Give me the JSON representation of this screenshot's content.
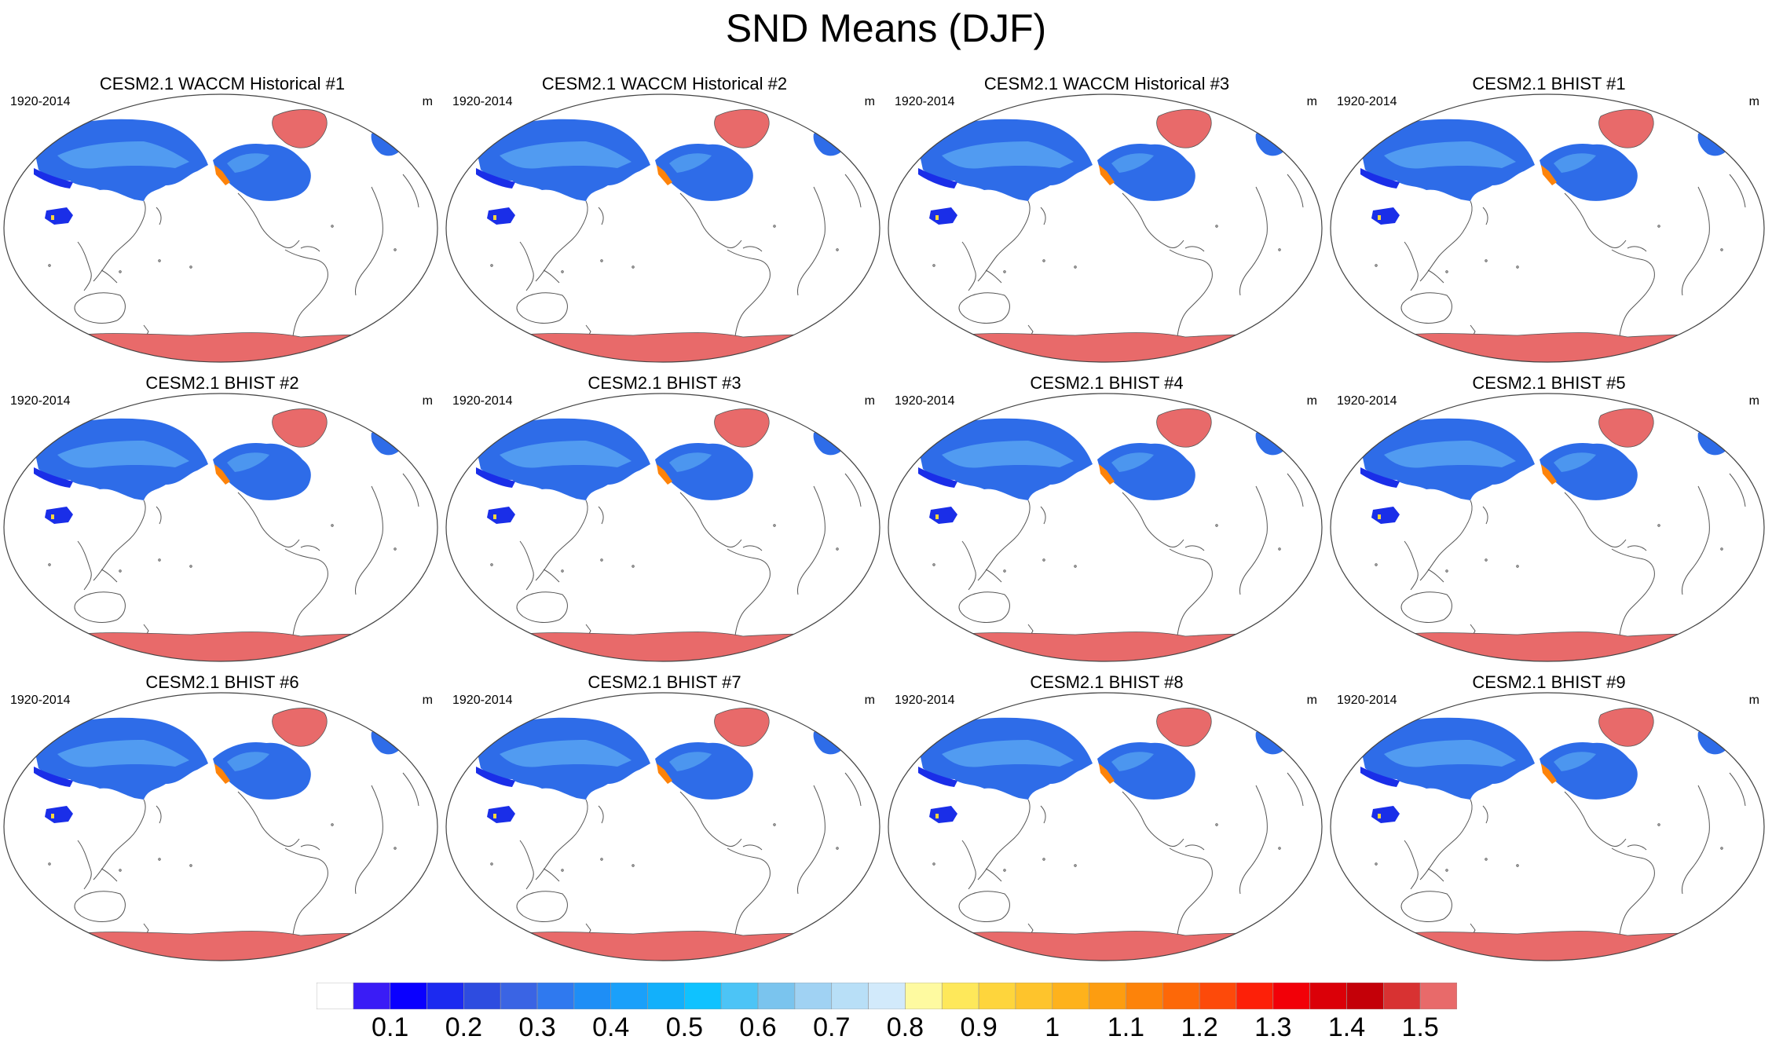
{
  "title": "SND Means (DJF)",
  "panels": [
    {
      "title": "CESM2.1 WACCM Historical #1",
      "period": "1920-2014",
      "units": "m"
    },
    {
      "title": "CESM2.1 WACCM Historical #2",
      "period": "1920-2014",
      "units": "m"
    },
    {
      "title": "CESM2.1 WACCM Historical #3",
      "period": "1920-2014",
      "units": "m"
    },
    {
      "title": "CESM2.1 BHIST #1",
      "period": "1920-2014",
      "units": "m"
    },
    {
      "title": "CESM2.1 BHIST #2",
      "period": "1920-2014",
      "units": "m"
    },
    {
      "title": "CESM2.1 BHIST #3",
      "period": "1920-2014",
      "units": "m"
    },
    {
      "title": "CESM2.1 BHIST #4",
      "period": "1920-2014",
      "units": "m"
    },
    {
      "title": "CESM2.1 BHIST #5",
      "period": "1920-2014",
      "units": "m"
    },
    {
      "title": "CESM2.1 BHIST #6",
      "period": "1920-2014",
      "units": "m"
    },
    {
      "title": "CESM2.1 BHIST #7",
      "period": "1920-2014",
      "units": "m"
    },
    {
      "title": "CESM2.1 BHIST #8",
      "period": "1920-2014",
      "units": "m"
    },
    {
      "title": "CESM2.1 BHIST #9",
      "period": "1920-2014",
      "units": "m"
    }
  ],
  "colorbar": {
    "labels": [
      "0.1",
      "0.2",
      "0.3",
      "0.4",
      "0.5",
      "0.6",
      "0.7",
      "0.8",
      "0.9",
      "1",
      "1.1",
      "1.2",
      "1.3",
      "1.4",
      "1.5"
    ],
    "colors": [
      "#ffffff",
      "#3a1cf6",
      "#0a00ff",
      "#1c2af0",
      "#2e4ce0",
      "#3a64e4",
      "#2f79ef",
      "#1e8ef6",
      "#1aa0fa",
      "#12b0fb",
      "#0fc2ff",
      "#4cc4f6",
      "#7ac4ee",
      "#a0d2f3",
      "#b8dff7",
      "#d2eafb",
      "#fefaa0",
      "#fee85a",
      "#fed53c",
      "#fec42c",
      "#feb21c",
      "#fd9d10",
      "#fd830a",
      "#fd6808",
      "#fd4a0a",
      "#fd2008",
      "#f20008",
      "#db0008",
      "#c40008",
      "#d83232",
      "#e86a6a"
    ],
    "antarctica_color": "#e86a6a",
    "greenland_color": "#e86a6a",
    "snow_base_color": "#2e6ce8",
    "snow_light_color": "#5aa8f2",
    "snow_dark_color": "#1a2ee8"
  }
}
